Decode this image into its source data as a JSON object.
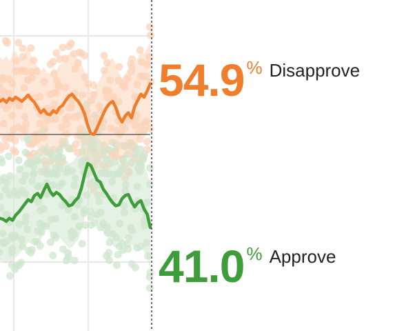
{
  "colors": {
    "disapprove": "#F07D2C",
    "disapprove_light": "#FBD3B9",
    "approve": "#3E9D3A",
    "approve_light": "#CFE5CD",
    "grid": "#E8E8E8",
    "midline": "#444444",
    "cursor": "#333333"
  },
  "readouts": {
    "disapprove": {
      "value": "54.9",
      "sign": "%",
      "label": "Disapprove"
    },
    "approve": {
      "value": "41.0",
      "sign": "%",
      "label": "Approve"
    }
  },
  "chart_data": {
    "type": "line",
    "ylim": [
      31,
      63
    ],
    "midline_value": 50,
    "grid": true,
    "series": [
      {
        "name": "Disapprove",
        "values": [
          53.2,
          53.4,
          53.1,
          53.5,
          53.3,
          53.6,
          53.4,
          53.2,
          53.5,
          53.8,
          53.4,
          53.1,
          52.6,
          52.1,
          52.4,
          52.0,
          51.9,
          52.3,
          52.1,
          52.6,
          52.8,
          53.3,
          53.7,
          53.9,
          53.5,
          53.2,
          52.7,
          52.0,
          50.9,
          50.1,
          50.0,
          50.6,
          51.3,
          52.0,
          52.6,
          53.0,
          53.2,
          52.6,
          51.7,
          51.2,
          51.8,
          52.1,
          51.6,
          52.7,
          53.3,
          53.9,
          53.6,
          54.2,
          54.9
        ],
        "band": [
          [
            57.5,
            49.6
          ],
          [
            57.2,
            49.8
          ],
          [
            57.6,
            49.4
          ],
          [
            57.0,
            49.9
          ],
          [
            57.8,
            49.5
          ],
          [
            58.1,
            49.7
          ],
          [
            57.4,
            49.6
          ],
          [
            57.2,
            49.3
          ],
          [
            57.9,
            49.8
          ],
          [
            58.4,
            50.0
          ],
          [
            57.6,
            49.5
          ],
          [
            57.0,
            49.2
          ],
          [
            56.6,
            48.7
          ],
          [
            56.1,
            48.3
          ],
          [
            56.5,
            48.5
          ],
          [
            56.0,
            48.1
          ],
          [
            55.9,
            48.0
          ],
          [
            56.4,
            48.4
          ],
          [
            56.2,
            48.2
          ],
          [
            56.7,
            48.6
          ],
          [
            56.9,
            48.9
          ],
          [
            57.4,
            49.3
          ],
          [
            57.8,
            49.7
          ],
          [
            58.0,
            49.9
          ],
          [
            57.6,
            49.5
          ],
          [
            57.3,
            49.2
          ],
          [
            56.8,
            48.7
          ],
          [
            56.1,
            48.0
          ],
          [
            55.0,
            46.9
          ],
          [
            54.3,
            46.1
          ],
          [
            54.1,
            46.0
          ],
          [
            54.8,
            46.6
          ],
          [
            55.4,
            47.2
          ],
          [
            56.1,
            48.0
          ],
          [
            56.8,
            48.6
          ],
          [
            57.1,
            49.0
          ],
          [
            57.4,
            49.2
          ],
          [
            56.7,
            48.6
          ],
          [
            55.9,
            47.6
          ],
          [
            55.4,
            47.2
          ],
          [
            55.9,
            47.8
          ],
          [
            56.3,
            48.1
          ],
          [
            55.7,
            47.5
          ],
          [
            56.9,
            48.6
          ],
          [
            57.4,
            49.3
          ],
          [
            58.1,
            49.9
          ],
          [
            57.8,
            49.6
          ],
          [
            58.3,
            50.2
          ],
          [
            59.0,
            51.0
          ]
        ]
      },
      {
        "name": "Approve",
        "values": [
          41.9,
          41.8,
          41.6,
          41.9,
          41.7,
          42.2,
          42.5,
          42.9,
          43.3,
          43.7,
          43.5,
          44.1,
          44.3,
          43.9,
          44.6,
          45.2,
          44.5,
          44.1,
          44.4,
          44.2,
          43.8,
          43.5,
          43.1,
          43.2,
          43.6,
          43.9,
          44.8,
          46.1,
          47.2,
          47.0,
          46.3,
          45.6,
          45.4,
          44.7,
          44.3,
          43.8,
          43.4,
          43.1,
          43.2,
          43.8,
          44.1,
          44.2,
          43.5,
          43.0,
          43.4,
          43.6,
          42.8,
          42.3,
          41.0
        ],
        "band": [
          [
            46.0,
            37.8
          ],
          [
            45.9,
            37.7
          ],
          [
            45.6,
            37.5
          ],
          [
            46.0,
            37.8
          ],
          [
            45.8,
            37.6
          ],
          [
            46.3,
            38.1
          ],
          [
            46.6,
            38.4
          ],
          [
            47.0,
            38.8
          ],
          [
            47.4,
            39.2
          ],
          [
            47.8,
            39.6
          ],
          [
            47.6,
            39.4
          ],
          [
            48.2,
            40.0
          ],
          [
            48.4,
            40.2
          ],
          [
            48.0,
            39.8
          ],
          [
            48.7,
            40.5
          ],
          [
            49.3,
            41.1
          ],
          [
            48.6,
            40.4
          ],
          [
            48.2,
            40.0
          ],
          [
            48.5,
            40.3
          ],
          [
            48.3,
            40.1
          ],
          [
            47.9,
            39.7
          ],
          [
            47.6,
            39.4
          ],
          [
            47.2,
            39.0
          ],
          [
            47.3,
            39.1
          ],
          [
            47.7,
            39.5
          ],
          [
            48.0,
            39.8
          ],
          [
            48.9,
            40.7
          ],
          [
            50.2,
            42.0
          ],
          [
            51.3,
            43.1
          ],
          [
            51.1,
            42.9
          ],
          [
            50.4,
            42.2
          ],
          [
            49.7,
            41.5
          ],
          [
            49.5,
            41.3
          ],
          [
            48.8,
            40.6
          ],
          [
            48.4,
            40.2
          ],
          [
            47.9,
            39.7
          ],
          [
            47.5,
            39.3
          ],
          [
            47.2,
            39.0
          ],
          [
            47.3,
            39.1
          ],
          [
            47.9,
            39.7
          ],
          [
            48.2,
            40.0
          ],
          [
            48.3,
            40.1
          ],
          [
            47.6,
            39.4
          ],
          [
            47.1,
            38.9
          ],
          [
            47.5,
            39.3
          ],
          [
            47.7,
            39.5
          ],
          [
            46.9,
            38.7
          ],
          [
            46.4,
            38.2
          ],
          [
            45.1,
            36.9
          ]
        ]
      }
    ]
  }
}
